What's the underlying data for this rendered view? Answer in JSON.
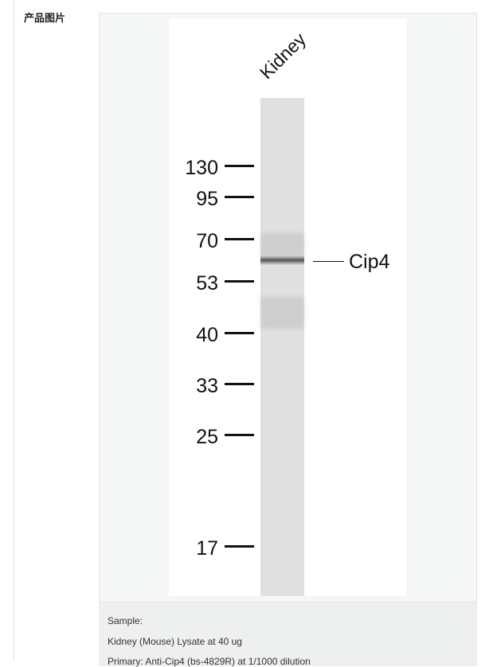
{
  "section_label": "产品图片",
  "blot": {
    "lane_label": "Kidney",
    "markers": [
      "130",
      "95",
      "70",
      "53",
      "40",
      "33",
      "25",
      "17"
    ],
    "band_label": "Cip4"
  },
  "caption": {
    "lines": [
      "Sample:",
      "Kidney (Mouse) Lysate at 40 ug",
      "Primary: Anti-Cip4 (bs-4829R) at 1/1000 dilution"
    ]
  }
}
